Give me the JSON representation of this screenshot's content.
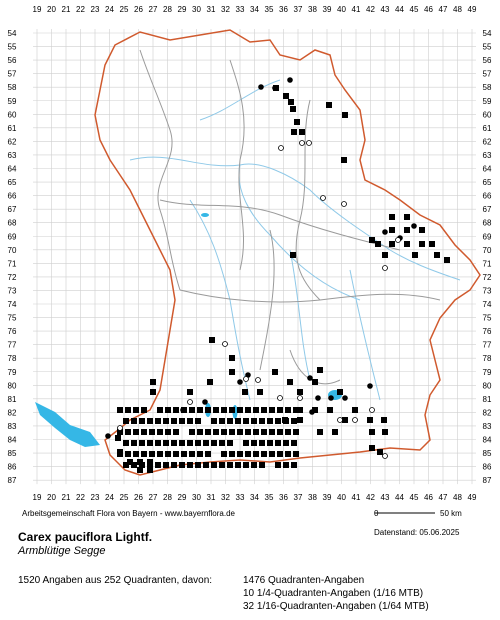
{
  "grid": {
    "top_labels": [
      "19",
      "20",
      "21",
      "22",
      "23",
      "24",
      "25",
      "26",
      "27",
      "28",
      "29",
      "30",
      "31",
      "32",
      "33",
      "34",
      "35",
      "36",
      "37",
      "38",
      "39",
      "40",
      "41",
      "42",
      "43",
      "44",
      "45",
      "46",
      "47",
      "48",
      "49"
    ],
    "side_labels": [
      "54",
      "55",
      "56",
      "57",
      "58",
      "59",
      "60",
      "61",
      "62",
      "63",
      "64",
      "65",
      "66",
      "67",
      "68",
      "69",
      "70",
      "71",
      "72",
      "73",
      "74",
      "75",
      "76",
      "77",
      "78",
      "79",
      "80",
      "81",
      "82",
      "83",
      "84",
      "85",
      "86",
      "87"
    ]
  },
  "credits": "Arbeitsgemeinschaft Flora von Bayern - www.bayernflora.de",
  "scale": {
    "zero": "0",
    "km": "50 km"
  },
  "status_date": "Datenstand: 05.06.2025",
  "species": {
    "name": "Carex pauciflora Lightf.",
    "german": "Armblütige Segge"
  },
  "stats": {
    "summary": "1520 Angaben aus 252 Quadranten, davon:",
    "line1": "1476 Quadranten-Angaben",
    "line2": "10 1/4-Quadranten-Angaben (1/16 MTB)",
    "line3": "32 1/16-Quadranten-Angaben (1/64 MTB)"
  },
  "colors": {
    "boundary": "#d05a2e",
    "district": "#9a9a9a",
    "water": "#35b7e6",
    "river": "#8fc9e8",
    "grid": "#cfcfcf",
    "marker": "#000000"
  }
}
